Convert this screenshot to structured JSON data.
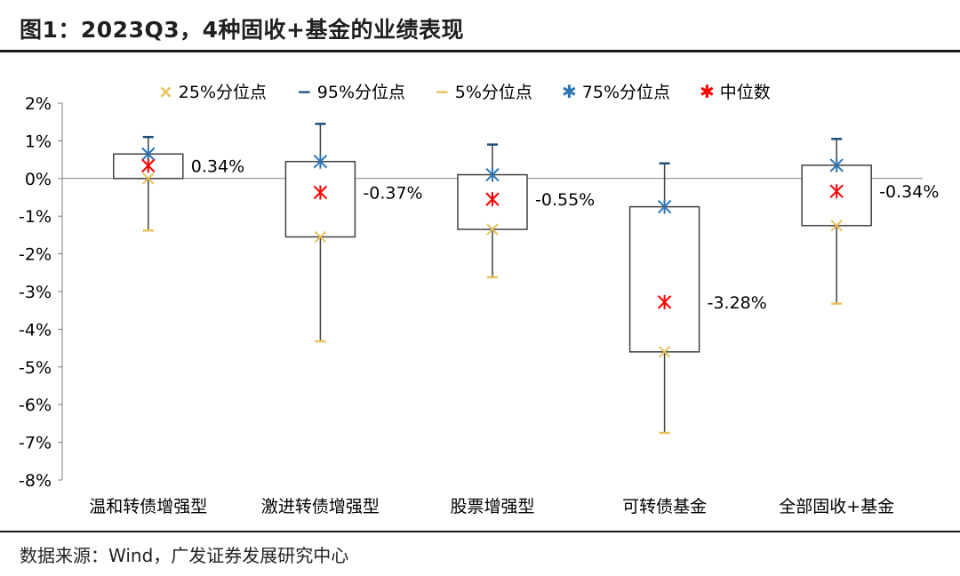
{
  "title": "图1：2023Q3，4种固收+基金的业绩表现",
  "source": "数据来源：Wind，广发证券发展研究中心",
  "chart_data": {
    "type": "box",
    "ylim": [
      -8,
      2
    ],
    "yticks": [
      "2%",
      "1%",
      "0%",
      "-1%",
      "-2%",
      "-3%",
      "-4%",
      "-5%",
      "-6%",
      "-7%",
      "-8%"
    ],
    "categories": [
      "温和转债增强型",
      "激进转债增强型",
      "股票增强型",
      "可转债基金",
      "全部固收+基金"
    ],
    "series": [
      {
        "name": "25%分位点",
        "color": "#e8c15a",
        "symbol": "×",
        "values": [
          0.0,
          -1.55,
          -1.35,
          -4.6,
          -1.25
        ]
      },
      {
        "name": "95%分位点",
        "color": "#1f4e79",
        "symbol": "−",
        "values": [
          1.1,
          1.45,
          0.9,
          0.4,
          1.05
        ]
      },
      {
        "name": "5%分位点",
        "color": "#e8c15a",
        "symbol": "−",
        "values": [
          -1.38,
          -4.32,
          -2.62,
          -6.75,
          -3.32
        ]
      },
      {
        "name": "75%分位点",
        "color": "#2e75b6",
        "symbol": "✱",
        "values": [
          0.65,
          0.45,
          0.1,
          -0.75,
          0.35
        ]
      },
      {
        "name": "中位数",
        "color": "#ff0000",
        "symbol": "✱",
        "values": [
          0.34,
          -0.37,
          -0.55,
          -3.28,
          -0.34
        ]
      }
    ],
    "median_labels": [
      "0.34%",
      "-0.37%",
      "-0.55%",
      "-3.28%",
      "-0.34%"
    ]
  }
}
